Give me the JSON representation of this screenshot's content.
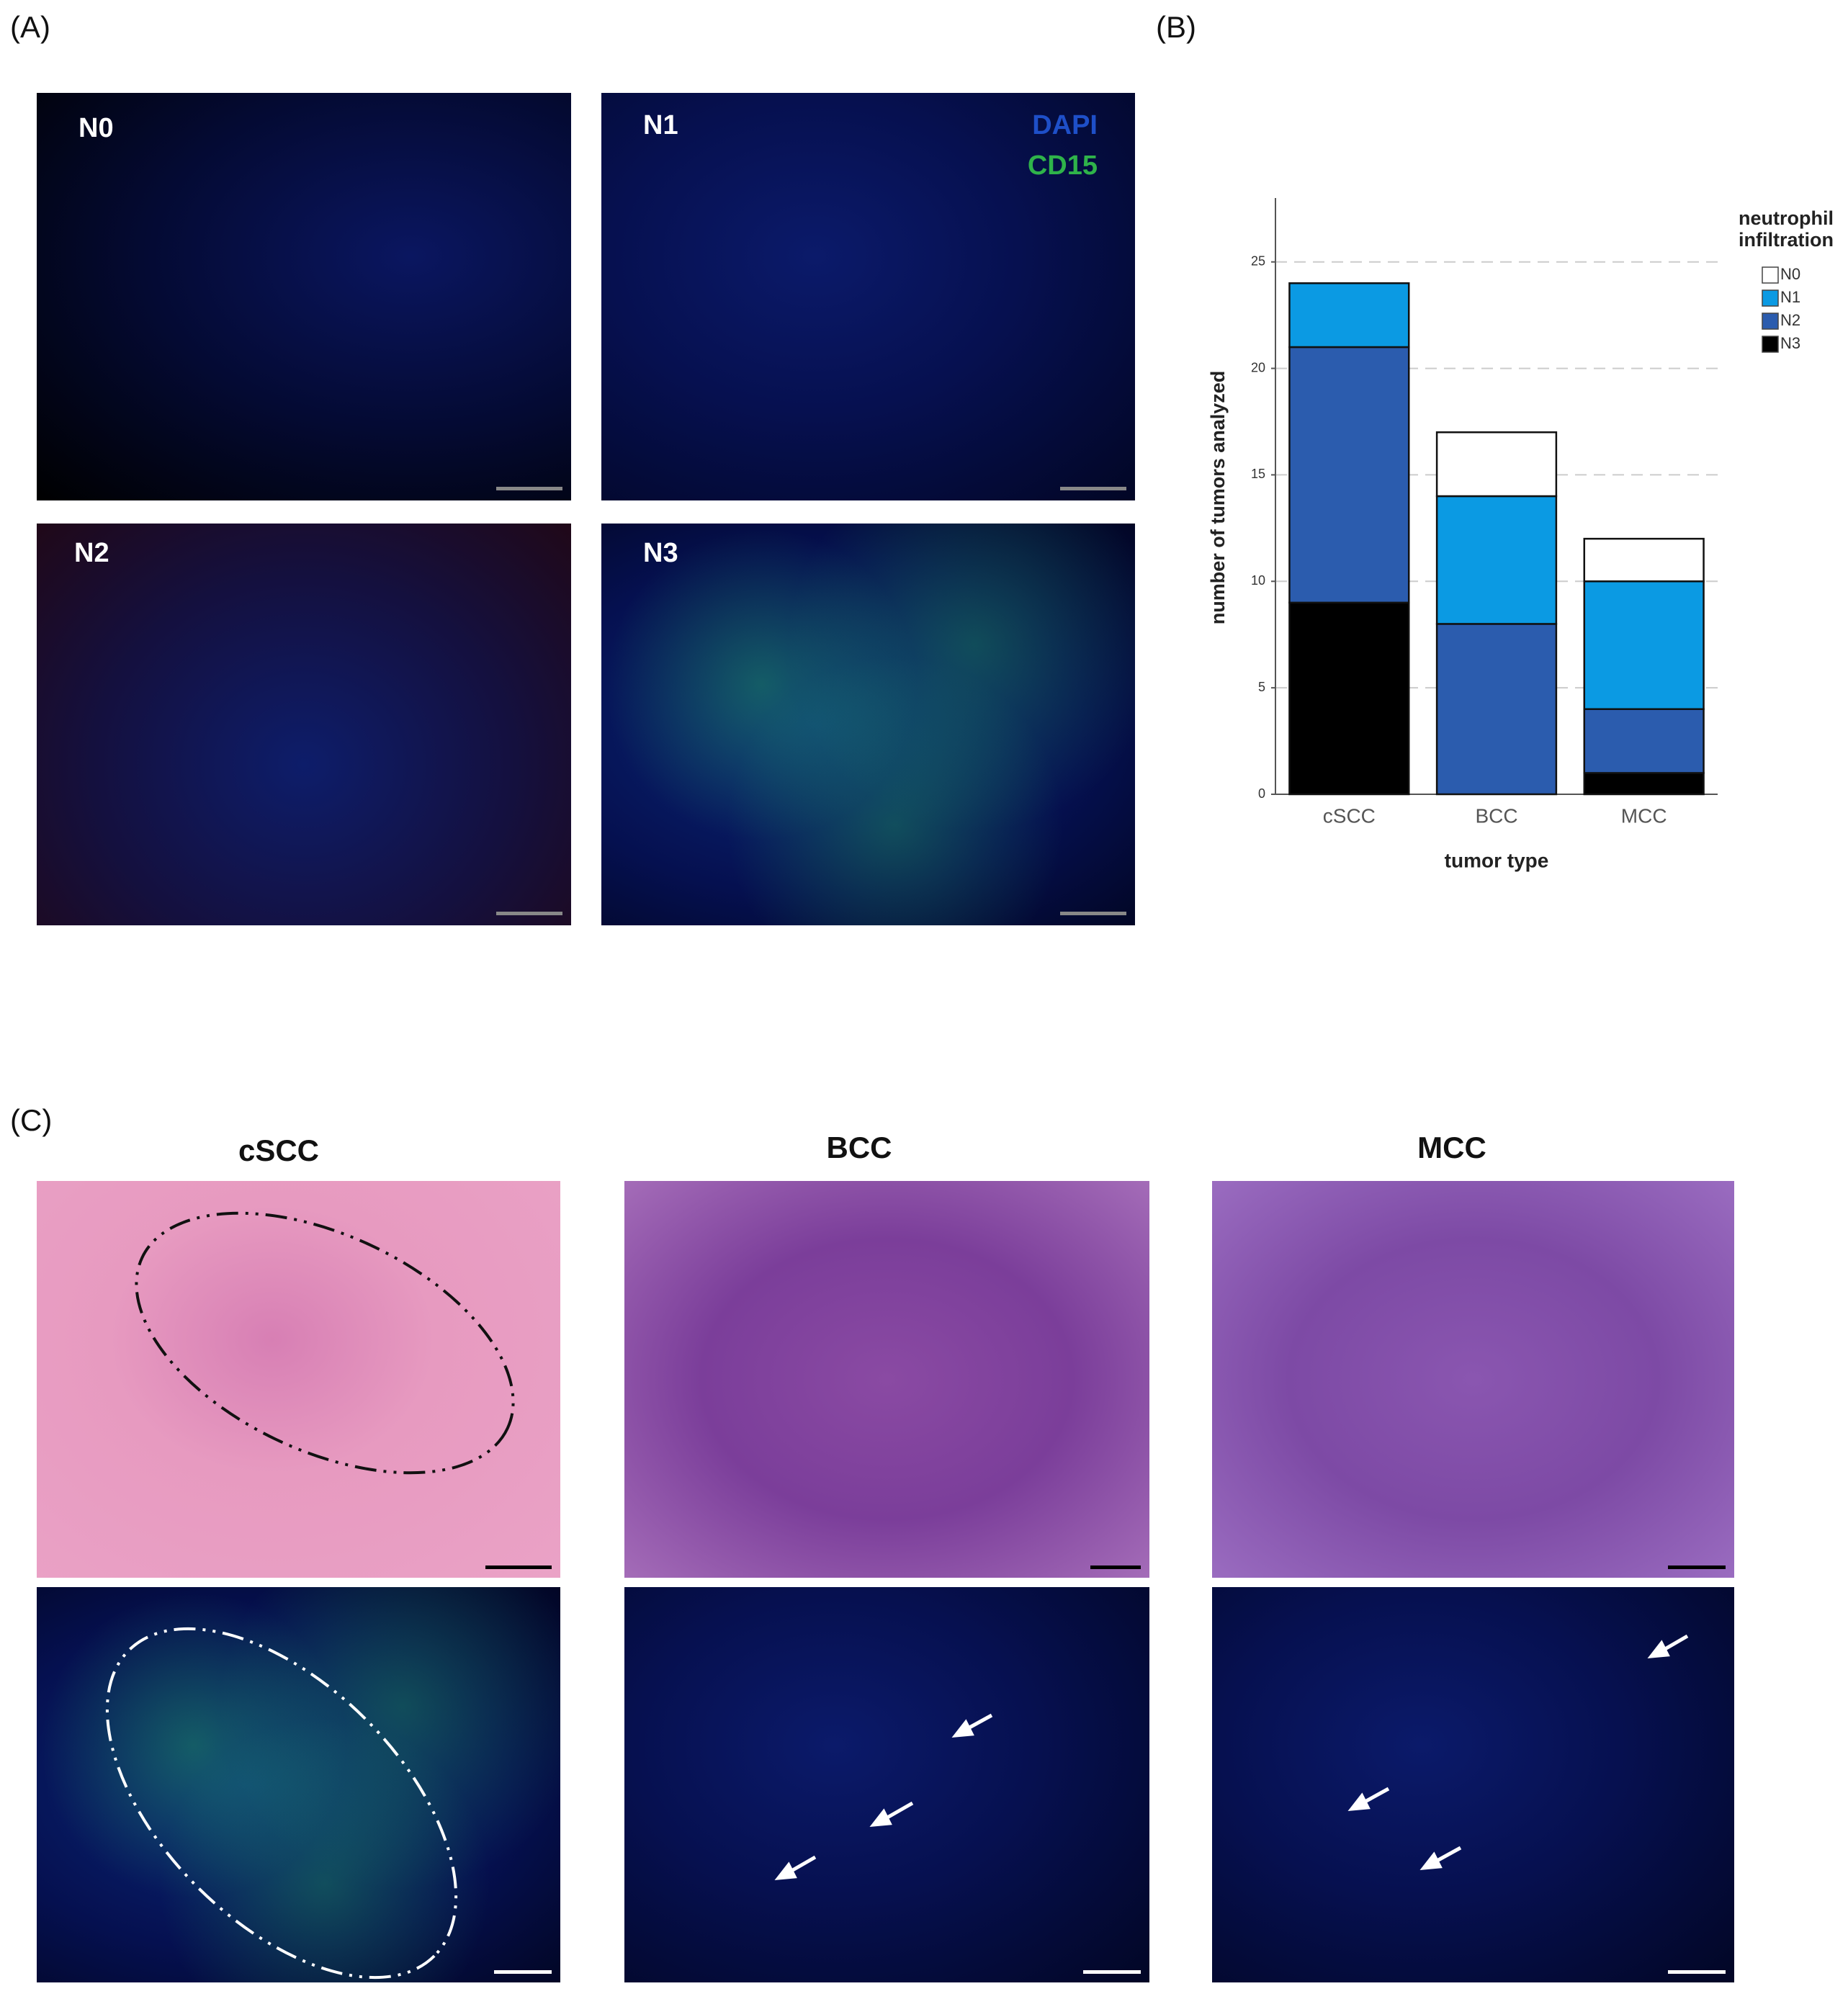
{
  "panels": {
    "a": "(A)",
    "b": "(B)",
    "c": "(C)"
  },
  "panel_a": {
    "images": [
      "N0",
      "N1",
      "N2",
      "N3"
    ],
    "stain_1": "DAPI",
    "stain_2": "CD15"
  },
  "panel_c": {
    "columns": [
      "cSCC",
      "BCC",
      "MCC"
    ]
  },
  "chart_data": {
    "type": "stacked_bar",
    "xlabel": "tumor type",
    "ylabel": "number of tumors analyzed",
    "legend_title": "neutrophil infiltration",
    "categories": [
      "cSCC",
      "BCC",
      "MCC"
    ],
    "series": [
      {
        "name": "N0",
        "color": "#ffffff",
        "values": [
          0,
          3,
          2
        ]
      },
      {
        "name": "N1",
        "color": "#0b9ae3",
        "values": [
          3,
          6,
          6
        ]
      },
      {
        "name": "N2",
        "color": "#2b5cae",
        "values": [
          12,
          8,
          3
        ]
      },
      {
        "name": "N3",
        "color": "#000000",
        "values": [
          9,
          0,
          1
        ]
      }
    ],
    "ylim": [
      0,
      28
    ],
    "yticks": [
      0,
      5,
      10,
      15,
      20,
      25
    ],
    "grid": true
  }
}
